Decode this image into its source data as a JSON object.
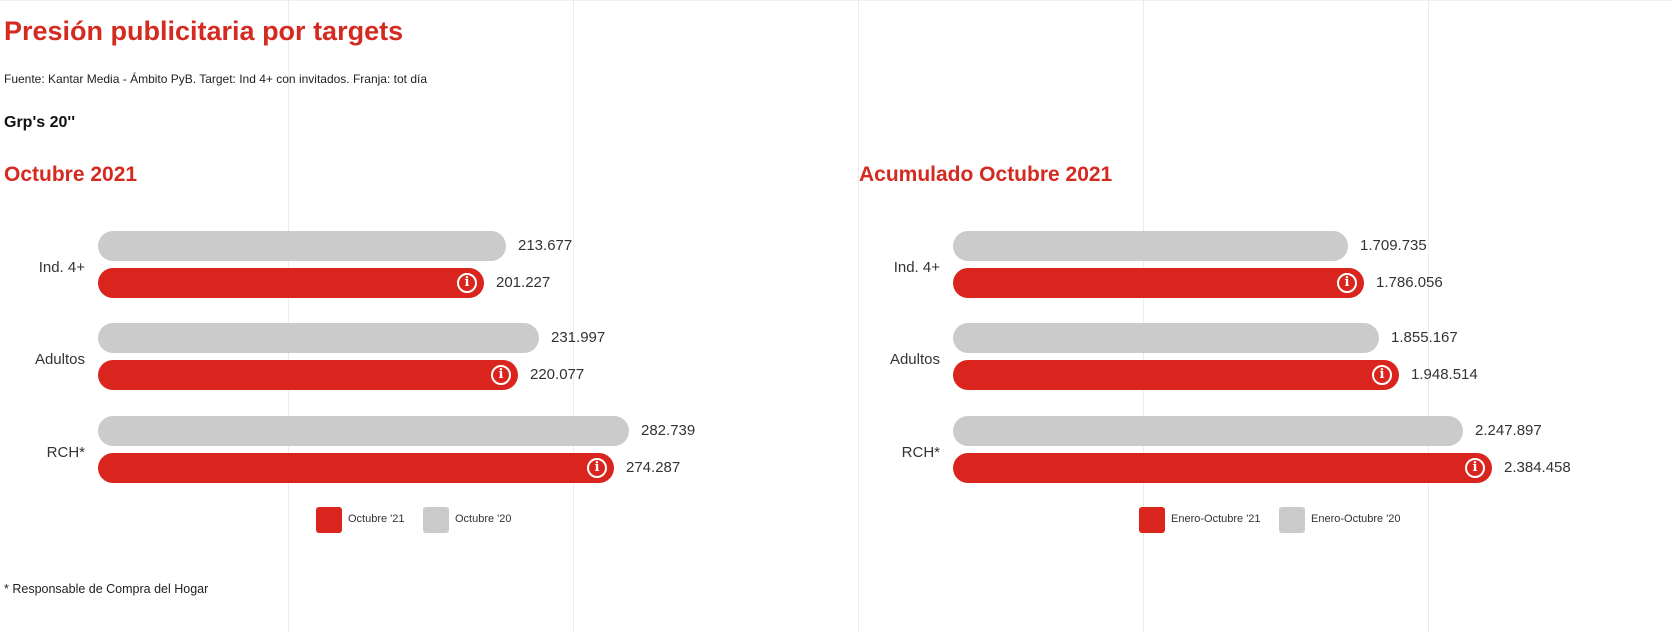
{
  "title": "Presión publicitaria por targets",
  "source": "Fuente: Kantar Media - Ámbito PyB. Target: Ind 4+ con invitados. Franja: tot día",
  "metric": "Grp's 20''",
  "footnote": "* Responsable de Compra del Hogar",
  "colors": {
    "accent": "#d42a20",
    "current": "#d9251d",
    "previous": "#cbcbcb"
  },
  "chart_data": [
    {
      "type": "bar",
      "orientation": "horizontal",
      "title": "Octubre 2021",
      "categories": [
        "Ind. 4+",
        "Adultos",
        "RCH*"
      ],
      "series": [
        {
          "name": "Octubre '20",
          "values": [
            213677,
            231997,
            282739
          ],
          "labels": [
            "213.677",
            "231.997",
            "282.739"
          ]
        },
        {
          "name": "Octubre '21",
          "values": [
            201227,
            220077,
            274287
          ],
          "labels": [
            "201.227",
            "220.077",
            "274.287"
          ]
        }
      ],
      "xlim": [
        0,
        300000
      ],
      "legend": [
        "Octubre '21",
        "Octubre '20"
      ],
      "legend_position": "bottom",
      "info_icon": "info-icon"
    },
    {
      "type": "bar",
      "orientation": "horizontal",
      "title": "Acumulado Octubre 2021",
      "categories": [
        "Ind. 4+",
        "Adultos",
        "RCH*"
      ],
      "series": [
        {
          "name": "Enero-Octubre '20",
          "values": [
            1709735,
            1855167,
            2247897
          ],
          "labels": [
            "1.709.735",
            "1.855.167",
            "2.247.897"
          ]
        },
        {
          "name": "Enero-Octubre '21",
          "values": [
            1786056,
            1948514,
            2384458
          ],
          "labels": [
            "1.786.056",
            "1.948.514",
            "2.384.458"
          ]
        }
      ],
      "xlim": [
        0,
        2500000
      ],
      "legend": [
        "Enero-Octubre '21",
        "Enero-Octubre '20"
      ],
      "legend_position": "bottom",
      "info_icon": "info-icon"
    }
  ]
}
